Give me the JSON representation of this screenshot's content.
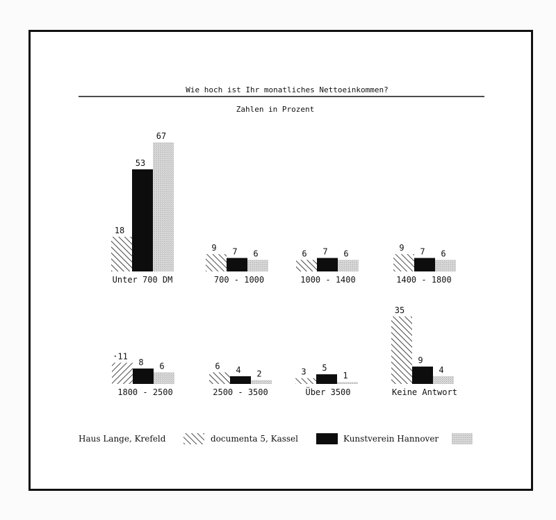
{
  "chart_data": {
    "type": "bar",
    "title": "Wie hoch ist Ihr monatliches Nettoeinkommen?",
    "subtitle": "Zahlen in Prozent",
    "categories": [
      "Unter 700 DM",
      "700 - 1000",
      "1000 - 1400",
      "1400 - 1800",
      "1800 - 2500",
      "2500 - 3500",
      "Über 3500",
      "Keine Antwort"
    ],
    "series": [
      {
        "name": "Haus Lange, Krefeld",
        "values": [
          18,
          9,
          6,
          9,
          11,
          6,
          3,
          35
        ],
        "pattern": "hatch"
      },
      {
        "name": "documenta 5, Kassel",
        "values": [
          53,
          7,
          7,
          7,
          8,
          4,
          5,
          9
        ],
        "pattern": "solid"
      },
      {
        "name": "Kunstverein Hannover",
        "values": [
          67,
          6,
          6,
          6,
          6,
          2,
          1,
          4
        ],
        "pattern": "dotted"
      }
    ],
    "value_labels": [
      [
        "18",
        "9",
        "6",
        "9",
        "·11",
        "6",
        "3",
        "35"
      ],
      [
        "53",
        "7",
        "7",
        "7",
        "8",
        "4",
        "5",
        "9"
      ],
      [
        "67",
        "6",
        "6",
        "6",
        "6",
        "2",
        "1",
        "4"
      ]
    ],
    "grid": false,
    "legend": "bottom",
    "colors": {
      "solid": "#0d0d0d",
      "dotted": "#cfcfcf",
      "hatch": "#1a1a1a",
      "frame": "#111111"
    }
  }
}
